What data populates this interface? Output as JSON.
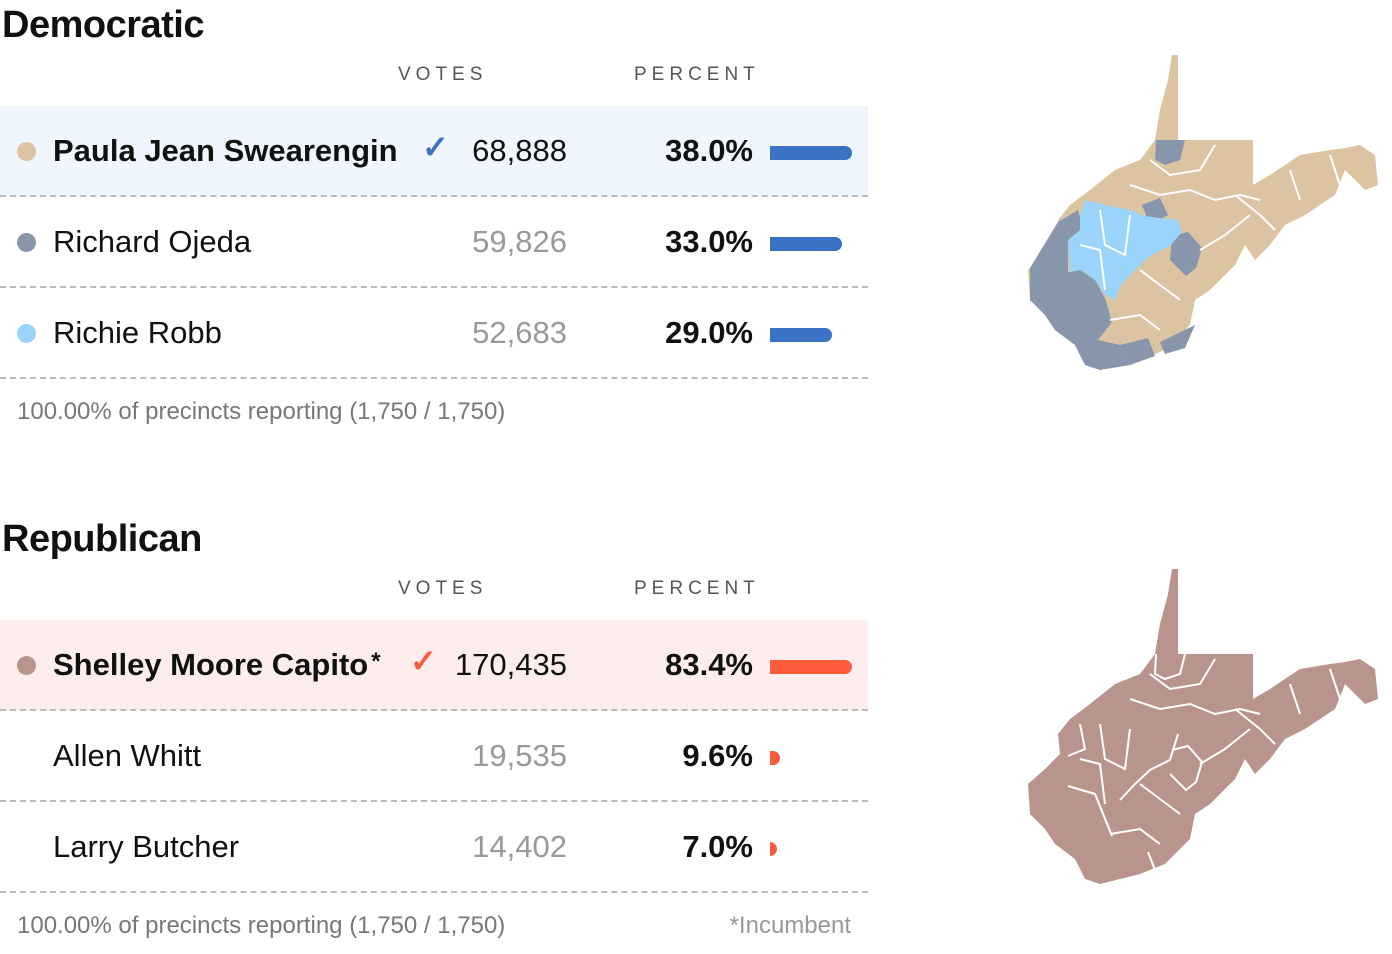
{
  "columns": {
    "votes": "VOTES",
    "percent": "PERCENT"
  },
  "races": [
    {
      "party": "Democratic",
      "accent": "#3a72c4",
      "highlight": "#eff6fd",
      "candidates": [
        {
          "name": "Paula Jean Swearengin",
          "votes": "68,888",
          "percent": "38.0%",
          "pct": 38.0,
          "color": "#dcc3a1",
          "winner": true,
          "check": "✓"
        },
        {
          "name": "Richard Ojeda",
          "votes": "59,826",
          "percent": "33.0%",
          "pct": 33.0,
          "color": "#8796aa"
        },
        {
          "name": "Richie Robb",
          "votes": "52,683",
          "percent": "29.0%",
          "pct": 29.0,
          "color": "#9ad4fb"
        }
      ],
      "reporting": "100.00% of precincts reporting (1,750 / 1,750)"
    },
    {
      "party": "Republican",
      "accent": "#fd5c3c",
      "highlight": "#fdeeed",
      "candidates": [
        {
          "name": "Shelley Moore Capito",
          "incumbent_mark": "*",
          "votes": "170,435",
          "percent": "83.4%",
          "pct": 83.4,
          "color": "#b9948c",
          "winner": true,
          "check": "✓"
        },
        {
          "name": "Allen Whitt",
          "votes": "19,535",
          "percent": "9.6%",
          "pct": 9.6
        },
        {
          "name": "Larry Butcher",
          "votes": "14,402",
          "percent": "7.0%",
          "pct": 7.0
        }
      ],
      "reporting": "100.00% of precincts reporting (1,750 / 1,750)",
      "footnote": "*Incumbent"
    }
  ]
}
